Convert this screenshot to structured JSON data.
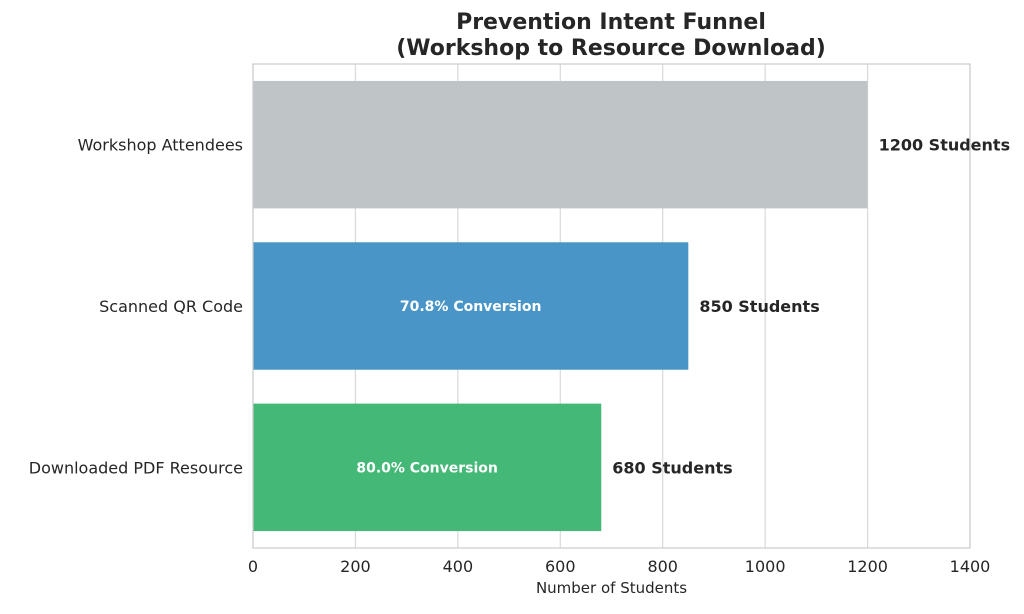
{
  "chart_data": {
    "type": "bar",
    "orientation": "horizontal",
    "title": "Prevention Intent Funnel\n(Workshop to Resource Download)",
    "xlabel": "Number of Students",
    "ylabel": "",
    "xlim": [
      0,
      1400
    ],
    "xticks": [
      0,
      200,
      400,
      600,
      800,
      1000,
      1200,
      1400
    ],
    "grid": true,
    "categories": [
      "Workshop Attendees",
      "Scanned QR Code",
      "Downloaded PDF Resource"
    ],
    "values": [
      1200,
      850,
      680
    ],
    "colors": [
      "#bfc4c7",
      "#4995c7",
      "#44b876"
    ],
    "value_labels": [
      "1200 Students",
      "850 Students",
      "680 Students"
    ],
    "conversion_labels": [
      "",
      "70.8% Conversion",
      "80.0% Conversion"
    ]
  }
}
